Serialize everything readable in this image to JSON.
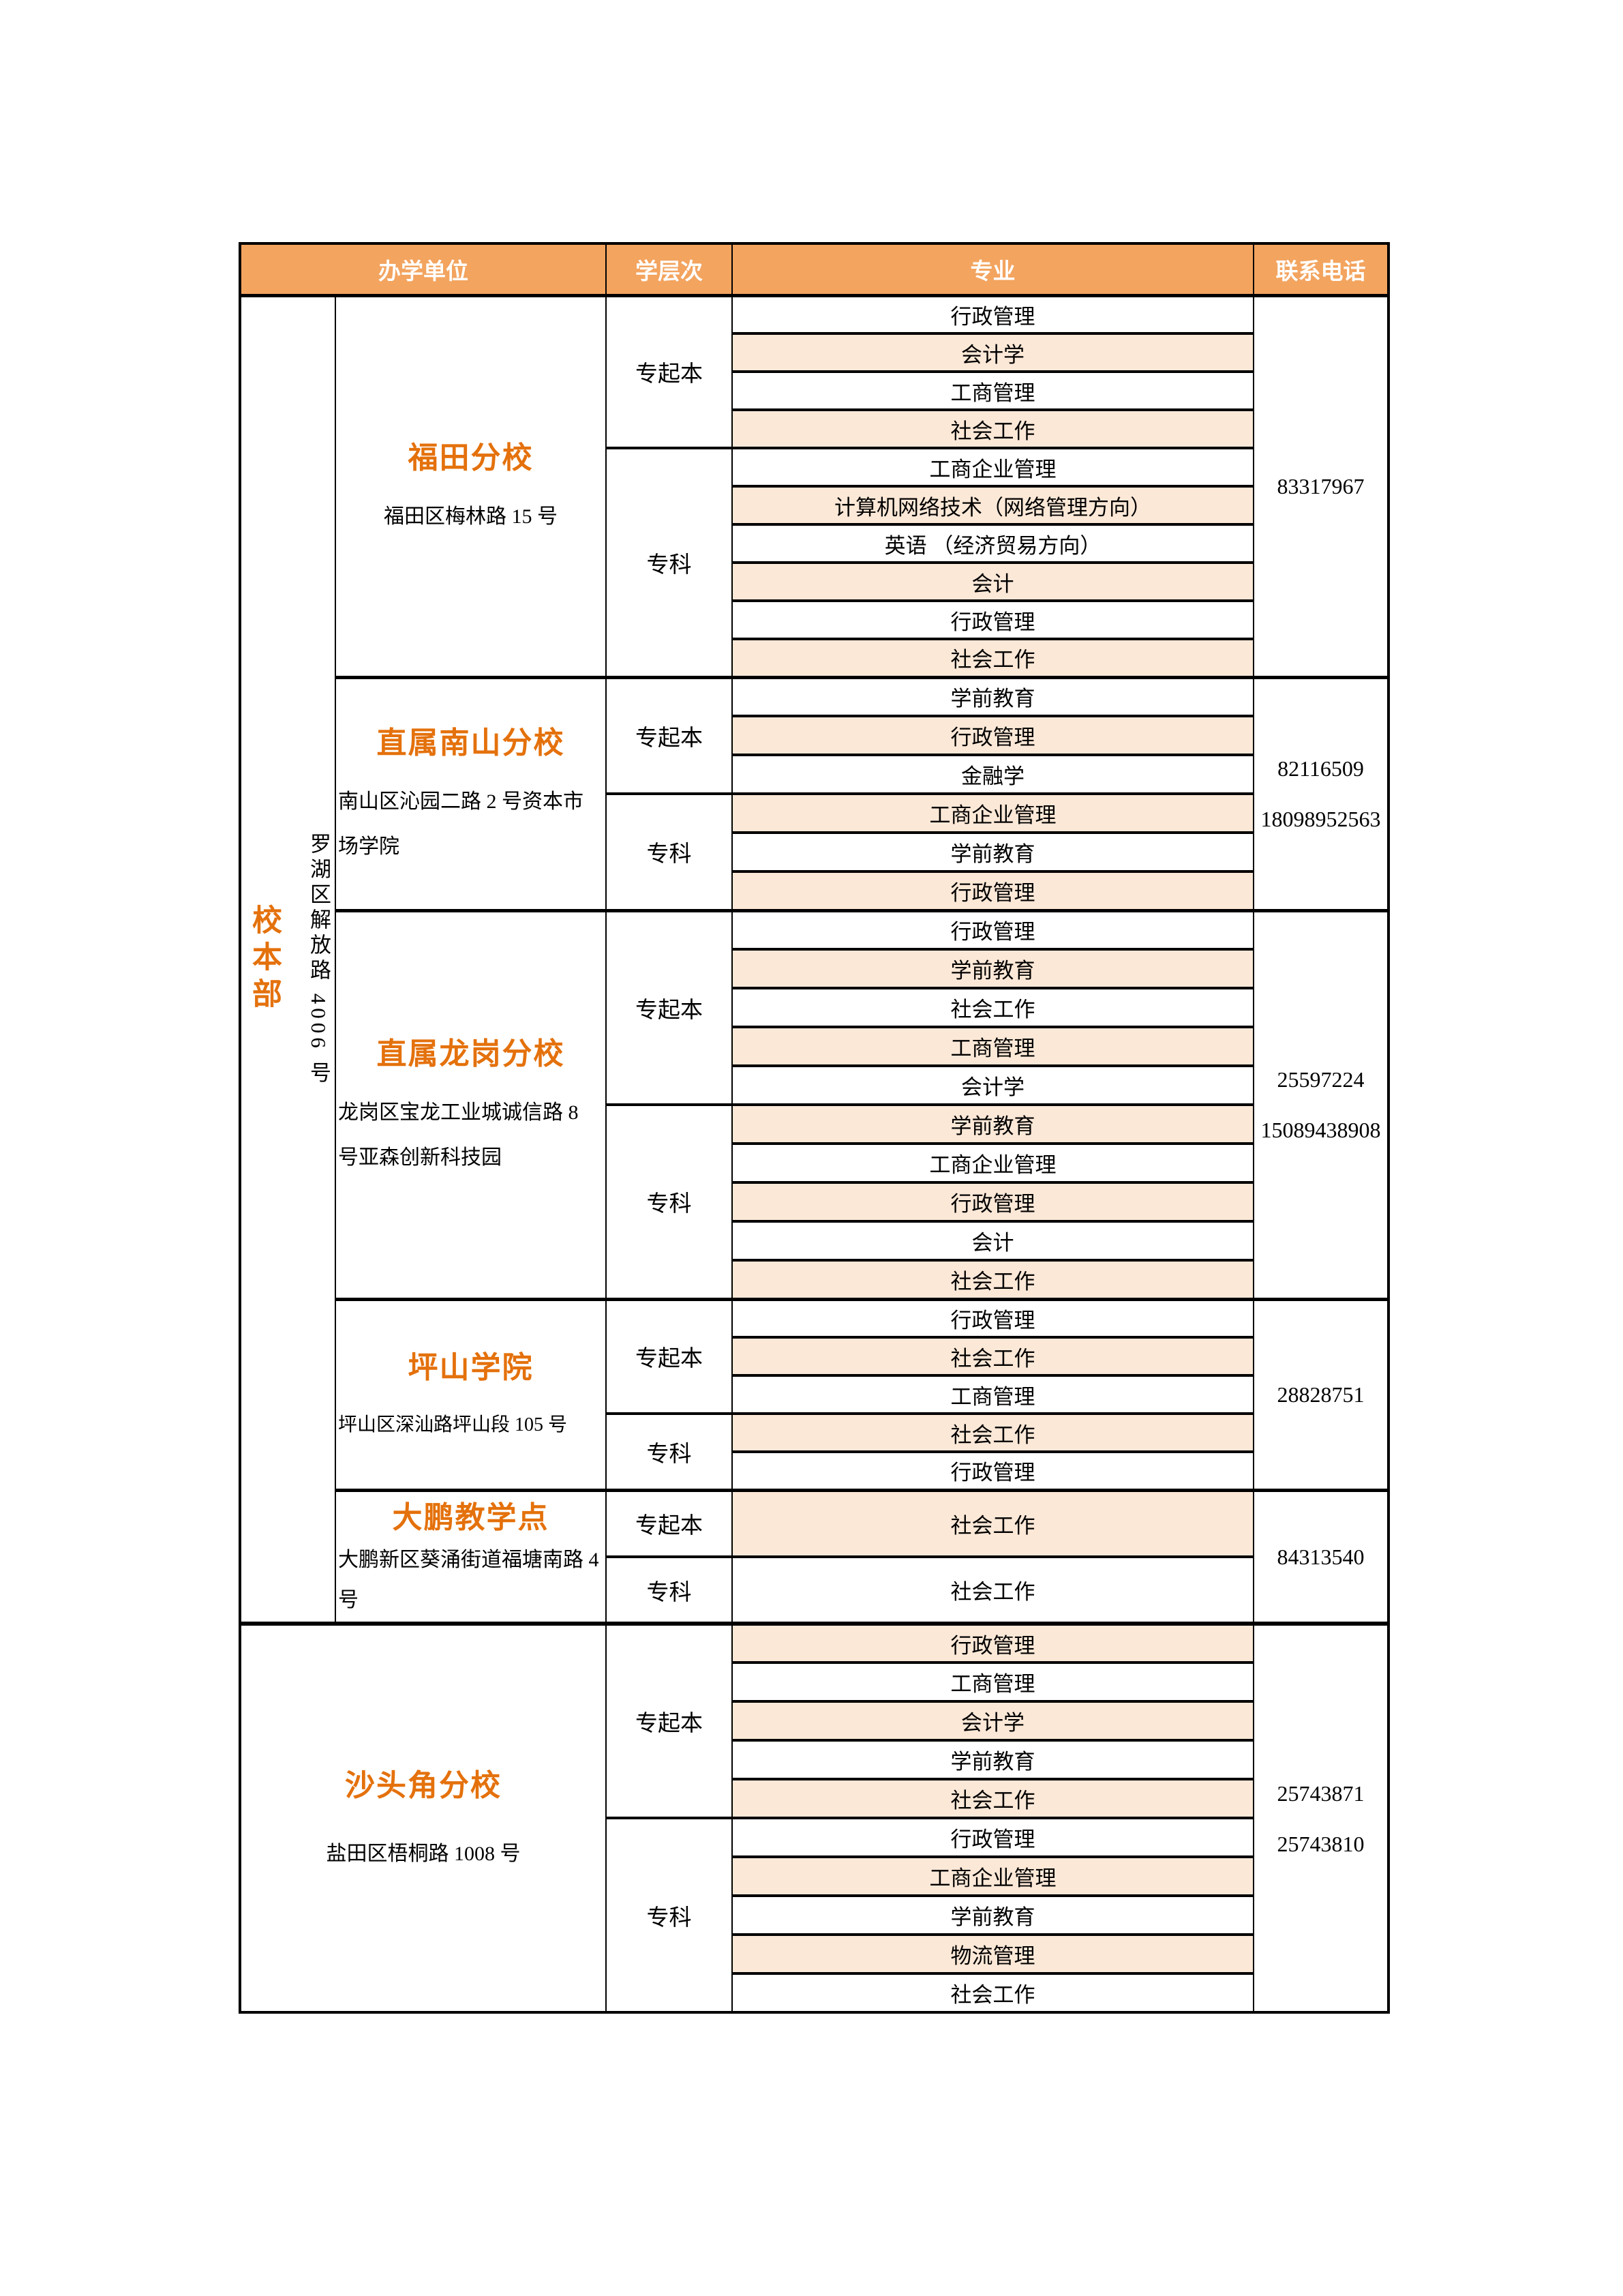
{
  "colors": {
    "header_bg": "#F3A45F",
    "header_text": "#FFFFFF",
    "row_alt_bg": "#FCE8D7",
    "accent_text": "#E4710C",
    "border": "#000000"
  },
  "table": {
    "headers": [
      {
        "label": "办学单位",
        "span": 2
      },
      {
        "label": "学层次",
        "span": 1
      },
      {
        "label": "专业",
        "span": 1
      },
      {
        "label": "联系电话",
        "span": 1
      }
    ],
    "campus_group": {
      "name": "校本部",
      "address": "罗湖区解放路 4006 号"
    },
    "sections": [
      {
        "branch": "福田分校",
        "address": "福田区梅林路 15 号",
        "address_align": "center",
        "phones": [
          "83317967"
        ],
        "levels": [
          {
            "label": "专起本",
            "majors": [
              "行政管理",
              "会计学",
              "工商管理",
              "社会工作"
            ]
          },
          {
            "label": "专科",
            "majors": [
              "工商企业管理",
              "计算机网络技术（网络管理方向）",
              "英语 （经济贸易方向）",
              "会计",
              "行政管理",
              "社会工作"
            ]
          }
        ]
      },
      {
        "branch": "直属南山分校",
        "address": "南山区沁园二路 2 号资本市场学院",
        "address_align": "left",
        "phones": [
          "82116509",
          "18098952563"
        ],
        "levels": [
          {
            "label": "专起本",
            "majors": [
              "学前教育",
              "行政管理",
              "金融学"
            ]
          },
          {
            "label": "专科",
            "majors": [
              "工商企业管理",
              "学前教育",
              "行政管理"
            ]
          }
        ]
      },
      {
        "branch": "直属龙岗分校",
        "address": "龙岗区宝龙工业城诚信路 8 号亚森创新科技园",
        "address_align": "left",
        "phones": [
          "25597224",
          "15089438908"
        ],
        "levels": [
          {
            "label": "专起本",
            "majors": [
              "行政管理",
              "学前教育",
              "社会工作",
              "工商管理",
              "会计学"
            ]
          },
          {
            "label": "专科",
            "majors": [
              "学前教育",
              "工商企业管理",
              "行政管理",
              "会计",
              "社会工作"
            ]
          }
        ]
      },
      {
        "branch": "坪山学院",
        "address": "坪山区深汕路坪山段 105 号",
        "address_align": "left",
        "phones": [
          "28828751"
        ],
        "levels": [
          {
            "label": "专起本",
            "majors": [
              "行政管理",
              "社会工作",
              "工商管理"
            ]
          },
          {
            "label": "专科",
            "majors": [
              "社会工作",
              "行政管理"
            ]
          }
        ]
      },
      {
        "branch": "大鹏教学点",
        "address": "大鹏新区葵涌街道福塘南路 4 号",
        "address_align": "left",
        "phones": [
          "84313540"
        ],
        "levels": [
          {
            "label": "专起本",
            "majors": [
              "社会工作"
            ]
          },
          {
            "label": "专科",
            "majors": [
              "社会工作"
            ]
          }
        ]
      },
      {
        "branch": "沙头角分校",
        "address": "盐田区梧桐路 1008 号",
        "address_align": "center",
        "merge_campus_column": true,
        "phones": [
          "25743871",
          "25743810"
        ],
        "levels": [
          {
            "label": "专起本",
            "majors": [
              "行政管理",
              "工商管理",
              "会计学",
              "学前教育",
              "社会工作"
            ]
          },
          {
            "label": "专科",
            "majors": [
              "行政管理",
              "工商企业管理",
              "学前教育",
              "物流管理",
              "社会工作"
            ]
          }
        ]
      }
    ]
  }
}
